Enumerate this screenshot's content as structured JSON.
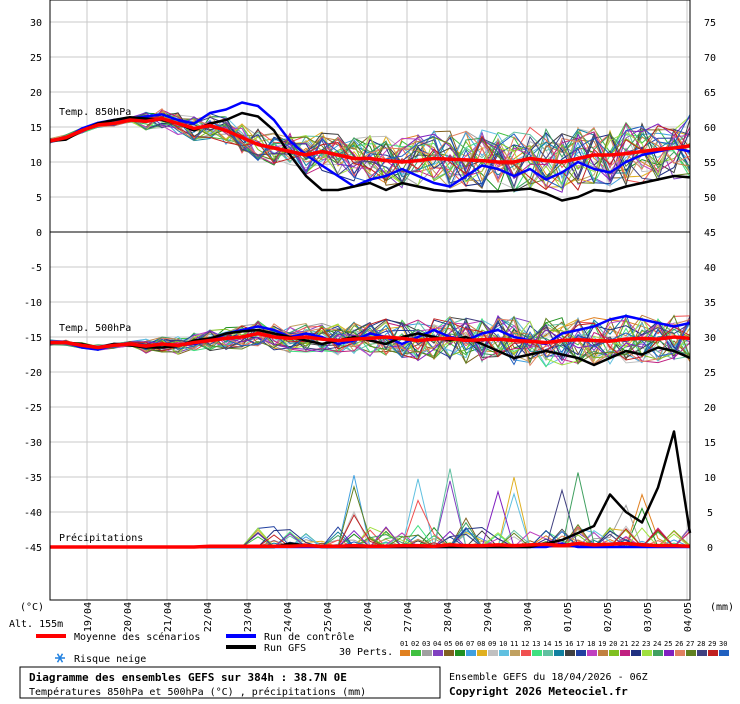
{
  "chart_data": {
    "type": "line",
    "title": "Diagramme des ensembles GEFS sur 384h : 38.7N 0E",
    "subtitle": "Températures 850hPa et 500hPa (°C) , précipitations (mm)",
    "altitude": "Alt. 155m",
    "x_labels": [
      "19/04",
      "20/04",
      "21/04",
      "22/04",
      "23/04",
      "24/04",
      "25/04",
      "26/04",
      "27/04",
      "28/04",
      "29/04",
      "30/04",
      "01/05",
      "02/05",
      "03/05",
      "04/05"
    ],
    "left_axis_unit": "(°C)",
    "right_axis_unit": "(mm)",
    "left_ticks": [
      30,
      25,
      20,
      15,
      10,
      5,
      0,
      -5,
      -10,
      -15,
      -20,
      -25,
      -30,
      -35,
      -40,
      -45
    ],
    "right_ticks": [
      75,
      70,
      65,
      60,
      55,
      50,
      45,
      40,
      35,
      30,
      25,
      20,
      15,
      10,
      5,
      0
    ],
    "grid": true,
    "panels": [
      "Temp. 850hPa",
      "Temp. 500hPa",
      "Précipitations"
    ],
    "series": [
      {
        "name": "Moyenne des scénarios",
        "panel": "Temp. 850hPa",
        "color": "#ff0000",
        "values": [
          13,
          13.5,
          14.5,
          15.3,
          15.5,
          16,
          15.8,
          16.2,
          15.5,
          14.8,
          15.2,
          14.5,
          13.5,
          12.5,
          12,
          11.5,
          11,
          11.5,
          11,
          10.5,
          10.5,
          10.2,
          10,
          10.2,
          10.5,
          10.4,
          10.3,
          10.2,
          10,
          10,
          10.5,
          10.2,
          10,
          10.5,
          11,
          11,
          11.2,
          11.5,
          11.8,
          12,
          12.3
        ]
      },
      {
        "name": "Run de contrôle",
        "panel": "Temp. 850hPa",
        "color": "#0000ff",
        "values": [
          13,
          13.4,
          14.8,
          15.6,
          16,
          16.2,
          16.5,
          16.8,
          16,
          15.5,
          17,
          17.5,
          18.5,
          18,
          16,
          13,
          11,
          9.5,
          8,
          6.5,
          7.5,
          8,
          9,
          8,
          7,
          6.5,
          8,
          9.5,
          9,
          8,
          9,
          7.5,
          8.5,
          10,
          9,
          8.5,
          10,
          11,
          11.5,
          12,
          11.5
        ]
      },
      {
        "name": "Run GFS",
        "panel": "Temp. 850hPa",
        "color": "#000000",
        "values": [
          13,
          13.2,
          14.5,
          15.5,
          16,
          16.4,
          16.2,
          16,
          15.5,
          14.5,
          15.5,
          16,
          17,
          16.5,
          14.5,
          11,
          8,
          6,
          6,
          6.5,
          7,
          6,
          7,
          6.5,
          6,
          5.8,
          6,
          5.8,
          5.8,
          6,
          6.2,
          5.5,
          4.5,
          5,
          6,
          5.8,
          6.5,
          7,
          7.5,
          8,
          7.8
        ]
      },
      {
        "name": "Moyenne des scénarios",
        "panel": "Temp. 500hPa",
        "color": "#ff0000",
        "values": [
          -15.8,
          -15.8,
          -16.2,
          -16.5,
          -16.2,
          -16,
          -16.3,
          -16,
          -16.2,
          -15.8,
          -15.5,
          -15.2,
          -15,
          -14.5,
          -15,
          -15.2,
          -15,
          -15.3,
          -15.5,
          -15.3,
          -15.2,
          -15,
          -15.2,
          -15.5,
          -15.3,
          -15.2,
          -15.5,
          -15.4,
          -15.3,
          -15.5,
          -15.6,
          -15.8,
          -15.5,
          -15.4,
          -15.5,
          -15.6,
          -15.3,
          -15.2,
          -15.3,
          -15,
          -15.2
        ]
      },
      {
        "name": "Run de contrôle",
        "panel": "Temp. 500hPa",
        "color": "#0000ff",
        "values": [
          -15.8,
          -15.8,
          -16.5,
          -16.8,
          -16.2,
          -16,
          -16.5,
          -16,
          -16.2,
          -16,
          -15.5,
          -14.5,
          -14,
          -13.5,
          -14,
          -15,
          -14.5,
          -15,
          -16,
          -15.5,
          -14.5,
          -15,
          -16,
          -15,
          -14,
          -15,
          -15.5,
          -14.5,
          -14,
          -15,
          -15.5,
          -16,
          -14.5,
          -14,
          -13.5,
          -12.5,
          -12,
          -12.5,
          -13,
          -13.5,
          -13
        ]
      },
      {
        "name": "Run GFS",
        "panel": "Temp. 500hPa",
        "color": "#000000",
        "values": [
          -15.8,
          -15.8,
          -16,
          -16.5,
          -16,
          -16.2,
          -16.5,
          -16.5,
          -16.3,
          -15.5,
          -15.2,
          -14.5,
          -14.2,
          -14,
          -14.5,
          -15,
          -15.5,
          -16,
          -15.5,
          -15,
          -15.5,
          -16,
          -15,
          -14.5,
          -15,
          -15.5,
          -15,
          -16,
          -17,
          -18,
          -17.5,
          -17,
          -17.5,
          -18,
          -19,
          -18,
          -17,
          -17.5,
          -16.5,
          -17,
          -18
        ]
      },
      {
        "name": "Moyenne des scénarios",
        "panel": "Précipitations",
        "color": "#ff0000",
        "values": [
          0,
          0,
          0,
          0,
          0,
          0,
          0,
          0,
          0,
          0,
          0.1,
          0.1,
          0.1,
          0.1,
          0.1,
          0.1,
          0.2,
          0.1,
          0.1,
          0.2,
          0.1,
          0.1,
          0.2,
          0.2,
          0.1,
          0.3,
          0.2,
          0.2,
          0.3,
          0.2,
          0.3,
          0.4,
          0.2,
          0.5,
          0.3,
          0.4,
          0.5,
          0.3,
          0.2,
          0.2,
          0.1
        ]
      },
      {
        "name": "Run de contrôle",
        "panel": "Précipitations",
        "color": "#0000ff",
        "values": [
          0,
          0,
          0,
          0,
          0,
          0,
          0,
          0,
          0,
          0,
          0,
          0,
          0,
          0,
          0,
          0,
          0,
          0,
          0,
          0,
          0,
          0,
          0,
          0,
          0,
          0,
          0,
          0,
          0,
          0,
          0,
          0,
          0.5,
          0,
          0,
          0,
          0,
          0,
          0,
          0,
          0
        ]
      },
      {
        "name": "Run GFS",
        "panel": "Précipitations",
        "color": "#000000",
        "values": [
          0,
          0,
          0,
          0,
          0,
          0,
          0,
          0,
          0,
          0,
          0,
          0,
          0,
          0,
          0,
          0.5,
          0.2,
          0,
          0,
          0,
          0,
          0,
          0,
          0,
          0,
          0,
          0,
          0,
          0,
          0,
          0,
          0.5,
          1,
          2,
          3,
          7.5,
          5,
          3.5,
          8.5,
          16.5,
          2
        ]
      }
    ],
    "ensemble_count": 30,
    "ensemble_labels": [
      "01",
      "02",
      "03",
      "04",
      "05",
      "06",
      "07",
      "08",
      "09",
      "10",
      "11",
      "12",
      "13",
      "14",
      "15",
      "16",
      "17",
      "18",
      "19",
      "20",
      "21",
      "22",
      "23",
      "24",
      "25",
      "26",
      "27",
      "28",
      "29",
      "30"
    ],
    "ensemble_colors": [
      "#e08020",
      "#40c040",
      "#a0a0a0",
      "#8040c0",
      "#806020",
      "#209020",
      "#40a0e0",
      "#e0b020",
      "#c0c0c0",
      "#60c0e0",
      "#c0a060",
      "#f05050",
      "#40e080",
      "#60c0a0",
      "#1080a0",
      "#404040",
      "#2040a0",
      "#c040c0",
      "#c08040",
      "#80c020",
      "#c02080",
      "#203080",
      "#a0e040",
      "#40a060",
      "#8020c0",
      "#e08060",
      "#608020",
      "#404080",
      "#c02020",
      "#2060c0"
    ]
  },
  "header": {
    "title": "Diagramme des ensembles GEFS sur 384h : 38.7N 0E",
    "subtitle": "Températures 850hPa et 500hPa (°C) , précipitations (mm)"
  },
  "legend": {
    "mean_label": "Moyenne des scénarios",
    "control_label": "Run de contrôle",
    "gfs_label": "Run GFS",
    "snow_label": "Risque neige",
    "perts_label": "30 Perts.",
    "mean_color": "#ff0000",
    "control_color": "#0000ff",
    "gfs_color": "#000000",
    "snow_color": "#2080e0"
  },
  "footer": {
    "run_info": "Ensemble GEFS du 18/04/2026 - 06Z",
    "copyright": "Copyright 2026 Meteociel.fr"
  }
}
